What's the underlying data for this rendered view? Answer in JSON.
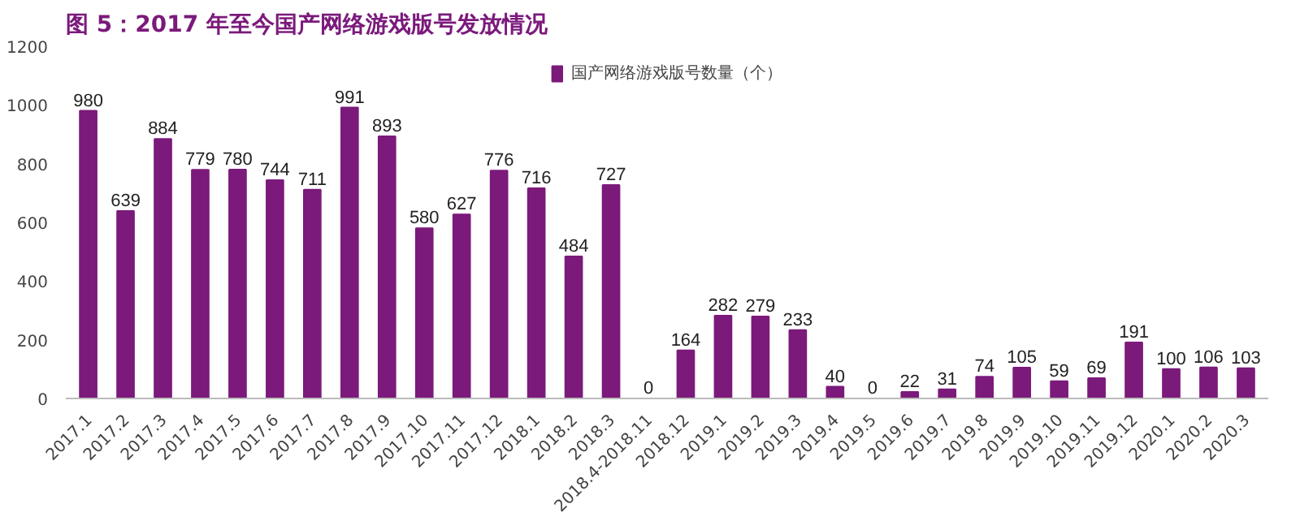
{
  "chart_data": {
    "type": "bar",
    "title": "图 5：2017 年至今国产网络游戏版号发放情况",
    "categories": [
      "2017.1",
      "2017.2",
      "2017.3",
      "2017.4",
      "2017.5",
      "2017.6",
      "2017.7",
      "2017.8",
      "2017.9",
      "2017.10",
      "2017.11",
      "2017.12",
      "2018.1",
      "2018.2",
      "2018.3",
      "2018.4-2018.11",
      "2018.12",
      "2019.1",
      "2019.2",
      "2019.3",
      "2019.4",
      "2019.5",
      "2019.6",
      "2019.7",
      "2019.8",
      "2019.9",
      "2019.10",
      "2019.11",
      "2019.12",
      "2020.1",
      "2020.2",
      "2020.3"
    ],
    "series": [
      {
        "name": "国产网络游戏版号数量（个）",
        "color": "#7b1a7b",
        "values": [
          980,
          639,
          884,
          779,
          780,
          744,
          711,
          991,
          893,
          580,
          627,
          776,
          716,
          484,
          727,
          0,
          164,
          282,
          279,
          233,
          40,
          0,
          22,
          31,
          74,
          105,
          59,
          69,
          191,
          100,
          106,
          103
        ]
      }
    ],
    "ylim": [
      0,
      1200
    ],
    "yticks": [
      0,
      200,
      400,
      600,
      800,
      1000,
      1200
    ],
    "data_labels": true,
    "legend": "top",
    "grid": false
  }
}
